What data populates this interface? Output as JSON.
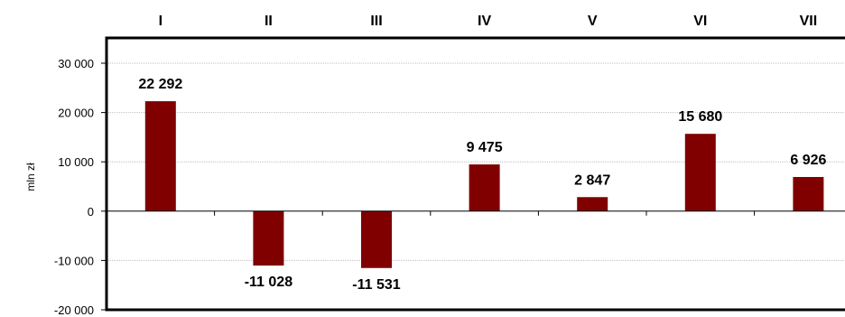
{
  "chart_data": {
    "type": "bar",
    "categories": [
      "I",
      "II",
      "III",
      "IV",
      "V",
      "VI",
      "VII"
    ],
    "series": [
      {
        "values": [
          22292,
          -11028,
          -11531,
          9475,
          2847,
          15680,
          6926
        ]
      }
    ],
    "value_labels": [
      "22 292",
      "-11 028",
      "-11 531",
      "9 475",
      "2 847",
      "15 680",
      "6 926"
    ],
    "title": "",
    "xlabel": "",
    "ylabel": "mln zł",
    "ylim": [
      -20000,
      30000
    ],
    "yticks": [
      30000,
      20000,
      10000,
      0,
      -10000,
      -20000
    ],
    "ytick_labels": [
      "30 000",
      "20 000",
      "10 000",
      "0",
      "-10 000",
      "-20 000"
    ],
    "grid": true,
    "legend": "none",
    "colors": {
      "bar": "#800000",
      "grid": "#bfbfbf",
      "frame": "#000000"
    }
  }
}
